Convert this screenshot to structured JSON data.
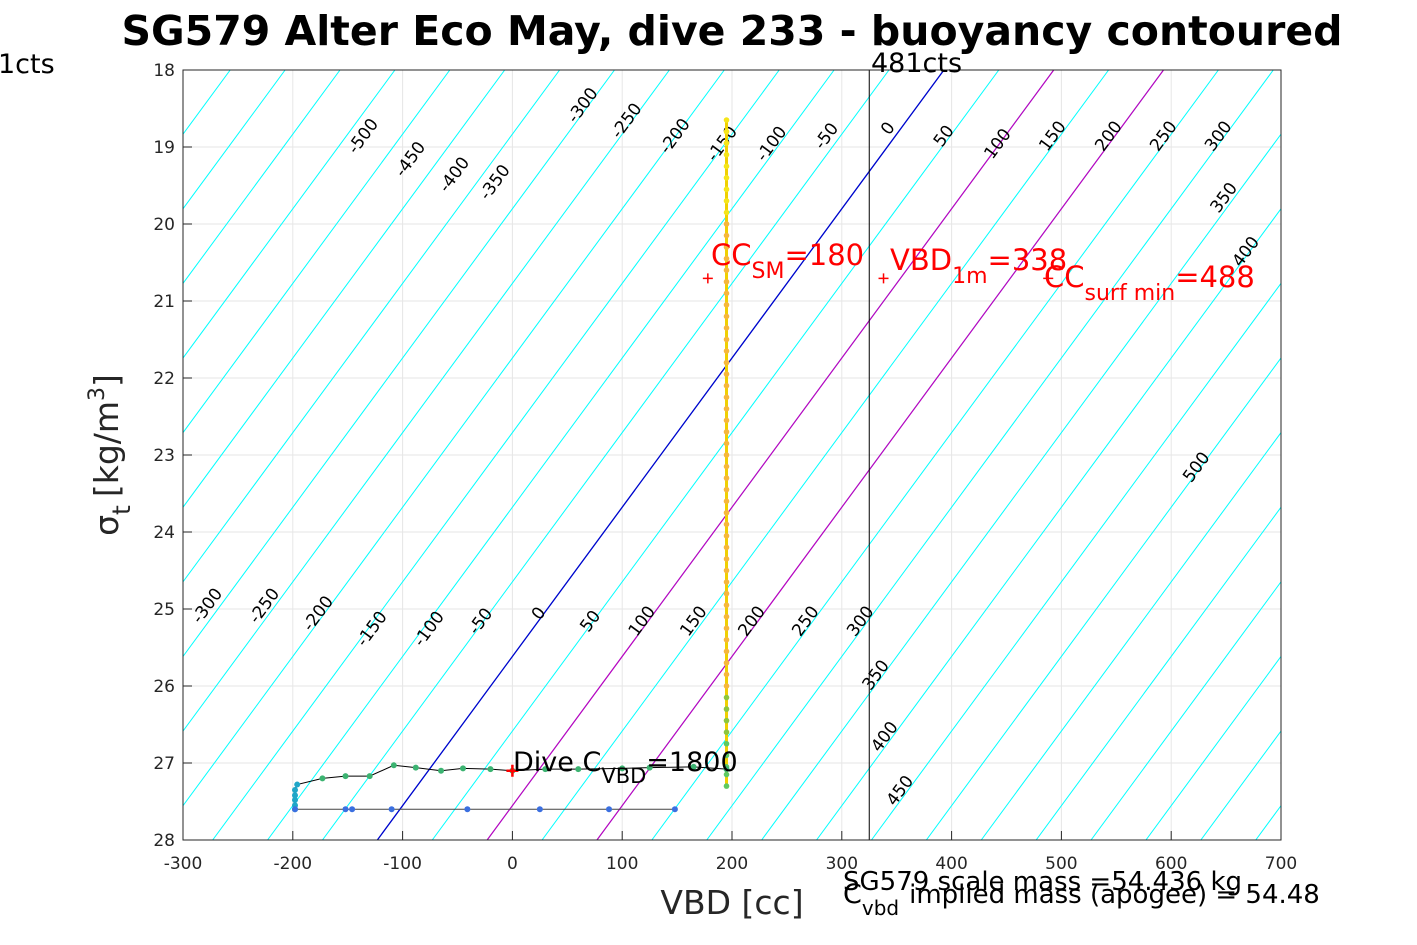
{
  "title": "SG579 Alter Eco May, dive 233 - buoyancy contoured",
  "left_fragment": "1cts",
  "chart_data": {
    "type": "scatter",
    "xlabel": "VBD [cc]",
    "ylabel_main": "σ",
    "ylabel_sub": "t",
    "ylabel_unit": "[kg/m",
    "ylabel_sup": "3",
    "ylabel_close": "]",
    "xlim": [
      -300,
      700
    ],
    "ylim": [
      18,
      28
    ],
    "y_reversed": true,
    "grid": true,
    "xticks": [
      -300,
      -200,
      -100,
      0,
      100,
      200,
      300,
      400,
      500,
      600,
      700
    ],
    "yticks": [
      18,
      19,
      20,
      21,
      22,
      23,
      24,
      25,
      26,
      27,
      28
    ],
    "contour_levels": [
      -500,
      -450,
      -400,
      -350,
      -300,
      -250,
      -200,
      -150,
      -100,
      -50,
      0,
      50,
      100,
      150,
      200,
      250,
      300,
      350,
      400,
      450,
      500
    ],
    "contour_labels_top": [
      {
        "text": "-500",
        "x": -132,
        "y": 18.9
      },
      {
        "text": "-450",
        "x": -89,
        "y": 19.2
      },
      {
        "text": "-400",
        "x": -49,
        "y": 19.4
      },
      {
        "text": "-350",
        "x": -12,
        "y": 19.5
      },
      {
        "text": "-300",
        "x": 68,
        "y": 18.5
      },
      {
        "text": "-250",
        "x": 108,
        "y": 18.7
      },
      {
        "text": "-200",
        "x": 152,
        "y": 18.9
      },
      {
        "text": "-150",
        "x": 195,
        "y": 19.0
      },
      {
        "text": "-100",
        "x": 240,
        "y": 19.0
      },
      {
        "text": "-50",
        "x": 290,
        "y": 18.9
      },
      {
        "text": "0",
        "x": 346,
        "y": 18.8
      },
      {
        "text": "50",
        "x": 397,
        "y": 18.9
      },
      {
        "text": "100",
        "x": 446,
        "y": 19.0
      },
      {
        "text": "150",
        "x": 496,
        "y": 18.9
      },
      {
        "text": "200",
        "x": 547,
        "y": 18.9
      },
      {
        "text": "250",
        "x": 597,
        "y": 18.9
      },
      {
        "text": "300",
        "x": 647,
        "y": 18.9
      },
      {
        "text": "350",
        "x": 652,
        "y": 19.7
      },
      {
        "text": "400",
        "x": 672,
        "y": 20.4
      },
      {
        "text": "500",
        "x": 627,
        "y": 23.2
      }
    ],
    "contour_labels_bottom": [
      {
        "text": "-300",
        "x": -274,
        "y": 25.0
      },
      {
        "text": "-250",
        "x": -222,
        "y": 25.0
      },
      {
        "text": "-200",
        "x": -173,
        "y": 25.1
      },
      {
        "text": "-150",
        "x": -124,
        "y": 25.3
      },
      {
        "text": "-100",
        "x": -72,
        "y": 25.3
      },
      {
        "text": "-50",
        "x": -25,
        "y": 25.2
      },
      {
        "text": "0",
        "x": 28,
        "y": 25.1
      },
      {
        "text": "50",
        "x": 75,
        "y": 25.2
      },
      {
        "text": "100",
        "x": 122,
        "y": 25.2
      },
      {
        "text": "150",
        "x": 169,
        "y": 25.2
      },
      {
        "text": "200",
        "x": 222,
        "y": 25.2
      },
      {
        "text": "250",
        "x": 271,
        "y": 25.2
      },
      {
        "text": "300",
        "x": 321,
        "y": 25.2
      },
      {
        "text": "350",
        "x": 335,
        "y": 25.9
      },
      {
        "text": "400",
        "x": 343,
        "y": 26.7
      },
      {
        "text": "450",
        "x": 357,
        "y": 27.4
      }
    ],
    "vertical_marker": {
      "x": 325,
      "label": "481cts"
    },
    "blue_line": {
      "x1": -123,
      "y1": 28,
      "x2": 393,
      "y2": 18
    },
    "magenta_lines": [
      {
        "x1": -23,
        "y1": 28,
        "x2": 493,
        "y2": 18
      },
      {
        "x1": 77,
        "y1": 28,
        "x2": 593,
        "y2": 18
      }
    ],
    "dive_series_points": [
      [
        195,
        18.65
      ],
      [
        195,
        18.8
      ],
      [
        195,
        18.95
      ],
      [
        195,
        19.1
      ],
      [
        195,
        19.25
      ],
      [
        195,
        19.4
      ],
      [
        195,
        19.55
      ],
      [
        195,
        19.7
      ],
      [
        195,
        19.85
      ],
      [
        195,
        20.0
      ],
      [
        195,
        20.15
      ],
      [
        195,
        20.3
      ],
      [
        195,
        20.45
      ],
      [
        195,
        20.6
      ],
      [
        195,
        20.75
      ],
      [
        195,
        20.9
      ],
      [
        195,
        21.05
      ],
      [
        195,
        21.2
      ],
      [
        195,
        21.35
      ],
      [
        195,
        21.5
      ],
      [
        195,
        21.65
      ],
      [
        195,
        21.8
      ],
      [
        195,
        21.95
      ],
      [
        195,
        22.1
      ],
      [
        195,
        22.25
      ],
      [
        195,
        22.4
      ],
      [
        195,
        22.55
      ],
      [
        195,
        22.7
      ],
      [
        195,
        22.85
      ],
      [
        195,
        23.0
      ],
      [
        195,
        23.15
      ],
      [
        195,
        23.3
      ],
      [
        195,
        23.45
      ],
      [
        195,
        23.6
      ],
      [
        195,
        23.75
      ],
      [
        195,
        23.9
      ],
      [
        195,
        24.05
      ],
      [
        195,
        24.2
      ],
      [
        195,
        24.35
      ],
      [
        195,
        24.5
      ],
      [
        195,
        24.65
      ],
      [
        195,
        24.8
      ],
      [
        195,
        24.95
      ],
      [
        195,
        25.1
      ],
      [
        195,
        25.25
      ],
      [
        195,
        25.4
      ],
      [
        195,
        25.55
      ],
      [
        195,
        25.7
      ],
      [
        195,
        25.85
      ],
      [
        195,
        26.0
      ],
      [
        195,
        26.15
      ],
      [
        195,
        26.3
      ],
      [
        195,
        26.45
      ],
      [
        195,
        26.6
      ],
      [
        195,
        26.75
      ],
      [
        195,
        26.9
      ],
      [
        195,
        27.05
      ],
      [
        195,
        27.15
      ],
      [
        195,
        27.3
      ]
    ],
    "climb_track": [
      [
        195,
        27.08
      ],
      [
        165,
        27.05
      ],
      [
        125,
        27.06
      ],
      [
        100,
        27.07
      ],
      [
        60,
        27.08
      ],
      [
        30,
        27.08
      ],
      [
        0,
        27.1
      ],
      [
        -20,
        27.08
      ],
      [
        -45,
        27.07
      ],
      [
        -65,
        27.1
      ],
      [
        -88,
        27.06
      ],
      [
        -108,
        27.03
      ],
      [
        -130,
        27.17
      ],
      [
        -152,
        27.17
      ],
      [
        -173,
        27.2
      ],
      [
        -196,
        27.28
      ],
      [
        -198,
        27.35
      ],
      [
        -198,
        27.42
      ],
      [
        -198,
        27.48
      ],
      [
        -198,
        27.55
      ],
      [
        -198,
        27.6
      ]
    ],
    "bottom_track": [
      [
        -198,
        27.6
      ],
      [
        -152,
        27.6
      ],
      [
        -146,
        27.6
      ],
      [
        -110,
        27.6
      ],
      [
        -41,
        27.6
      ],
      [
        25,
        27.6
      ],
      [
        88,
        27.6
      ],
      [
        148,
        27.6
      ]
    ],
    "dive_c_marker": {
      "x": 0,
      "y": 27.1
    },
    "cc_sm_marker": {
      "x": 178,
      "y": 20.55
    },
    "vbd_1m_marker": {
      "x": 338,
      "y": 20.55
    },
    "cc_surf_marker": {
      "x": 488,
      "y": 20.55
    }
  },
  "annotations": {
    "cc_sm": {
      "main": "CC",
      "sub": "SM",
      "val": "=180"
    },
    "vbd_1m": {
      "main": "VBD",
      "sub": "1m",
      "val": "=338"
    },
    "cc_surf": {
      "main": "CC",
      "sub": "surf min",
      "val": "=488"
    },
    "dive_c": {
      "main": "Dive C",
      "sub": "VBD",
      "val": "=1800"
    },
    "scale_mass": "SG579 scale mass =54.436 kg",
    "cvbd_main": "C",
    "cvbd_sub": "vbd",
    "implied_mass": "implied mass (apogee) = 54.48"
  },
  "colors": {
    "contour": "#00ffff",
    "zero_line": "#0000cc",
    "magenta": "#bf00bf",
    "red": "#ff0000",
    "grid": "#e6e6e6",
    "track": "#000000"
  }
}
